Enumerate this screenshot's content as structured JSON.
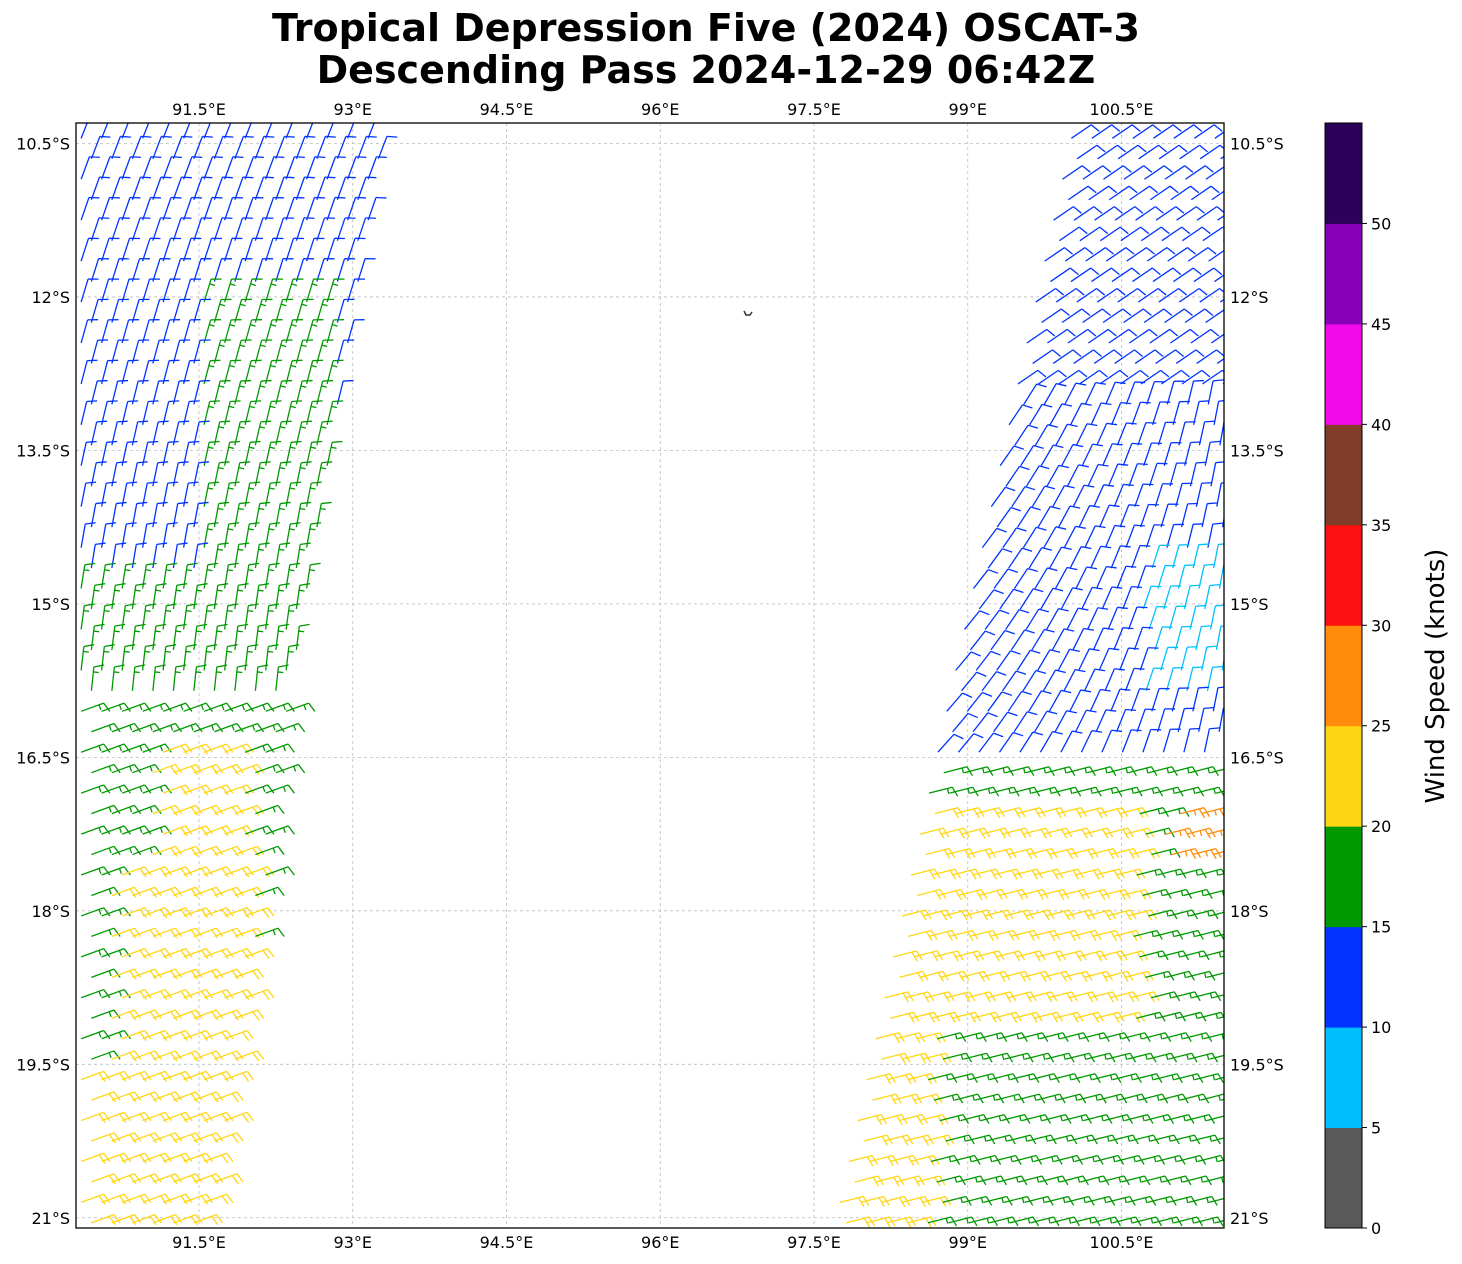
{
  "chart_data": {
    "type": "scatter",
    "subtype": "wind-barbs",
    "title_line1": "Tropical Depression Five (2024) OSCAT-3",
    "title_line2": "Descending Pass 2024-12-29 06:42Z",
    "x_ticks": [
      "91.5°E",
      "93°E",
      "94.5°E",
      "96°E",
      "97.5°E",
      "99°E",
      "100.5°E"
    ],
    "x_tick_values": [
      91.5,
      93,
      94.5,
      96,
      97.5,
      99,
      100.5
    ],
    "y_ticks": [
      "10.5°S",
      "12°S",
      "13.5°S",
      "15°S",
      "16.5°S",
      "18°S",
      "19.5°S",
      "21°S"
    ],
    "y_tick_values": [
      -10.5,
      -12,
      -13.5,
      -15,
      -16.5,
      -18,
      -19.5,
      -21
    ],
    "xlim": [
      90.3,
      101.5
    ],
    "ylim": [
      -21.1,
      -10.3
    ],
    "grid": true,
    "colorbar": {
      "label": "Wind Speed (knots)",
      "ticks": [
        "0",
        "5",
        "10",
        "15",
        "20",
        "25",
        "30",
        "35",
        "40",
        "45",
        "50"
      ],
      "bins": [
        {
          "min": 0,
          "max": 5,
          "color": "#595959"
        },
        {
          "min": 5,
          "max": 10,
          "color": "#00bfff"
        },
        {
          "min": 10,
          "max": 15,
          "color": "#0033ff"
        },
        {
          "min": 15,
          "max": 20,
          "color": "#009900"
        },
        {
          "min": 20,
          "max": 25,
          "color": "#ffd614"
        },
        {
          "min": 25,
          "max": 30,
          "color": "#ff8c0a"
        },
        {
          "min": 30,
          "max": 35,
          "color": "#ff1010"
        },
        {
          "min": 35,
          "max": 40,
          "color": "#813d29"
        },
        {
          "min": 40,
          "max": 45,
          "color": "#f20aed"
        },
        {
          "min": 45,
          "max": 50,
          "color": "#8500b8"
        },
        {
          "min": 50,
          "max": 55,
          "color": "#2d005c"
        }
      ]
    },
    "series": [
      {
        "swath": "west",
        "lat_range": [
          -10.5,
          -21.1
        ],
        "lon_west": 90.3,
        "lon_east_at_top": 93.3,
        "lon_east_at_bottom": 91.6,
        "speed_profile_knots": [
          {
            "lat": -10.5,
            "speed": 12
          },
          {
            "lat": -14.5,
            "speed": 14
          },
          {
            "lat": -16.0,
            "speed": 17
          },
          {
            "lat": -18.0,
            "speed": 19
          },
          {
            "lat": -20.0,
            "speed": 18
          }
        ]
      },
      {
        "swath": "east",
        "lat_range": [
          -10.5,
          -21.1
        ],
        "lon_west_at_top": 100.0,
        "lon_west_at_bottom": 97.7,
        "lon_east": 101.5,
        "speed_profile_knots": [
          {
            "lat": -10.5,
            "speed": 12
          },
          {
            "lat": -15.0,
            "speed": 9
          },
          {
            "lat": -16.8,
            "speed": 15
          },
          {
            "lat": -17.3,
            "speed": 26
          },
          {
            "lat": -18.5,
            "speed": 21
          },
          {
            "lat": -20.5,
            "speed": 18
          }
        ]
      }
    ]
  }
}
